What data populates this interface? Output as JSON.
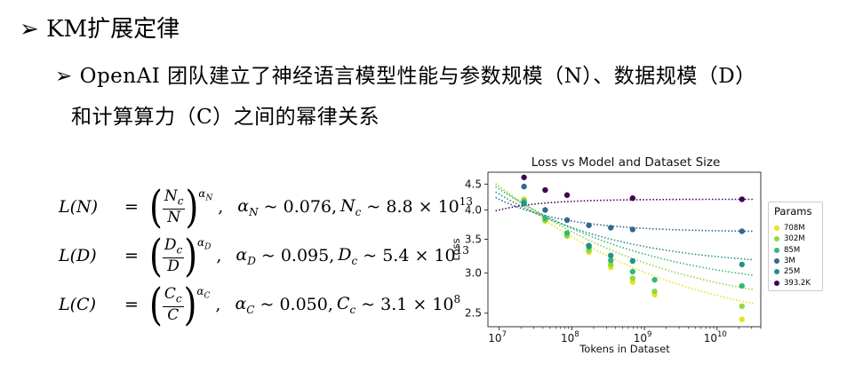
{
  "heading": {
    "arrow": "➢",
    "text": "KM扩展定律"
  },
  "bullet": {
    "arrow": "➢",
    "line1": "OpenAI 团队建立了神经语言模型性能与参数规模（N）、数据规模（D）",
    "line2": "和计算算力（C）之间的幂律关系"
  },
  "equations": [
    {
      "lhs": "L(N)",
      "eq": "=",
      "num": "N",
      "num_sub": "c",
      "den": "N",
      "exp": "α",
      "exp_sub": "N",
      "alpha": "α",
      "alpha_sub": "N",
      "alpha_val": "~ 0.076,",
      "const": "N",
      "const_sub": "c",
      "const_val": "~ 8.8 × 10",
      "power": "13"
    },
    {
      "lhs": "L(D)",
      "eq": "=",
      "num": "D",
      "num_sub": "c",
      "den": "D",
      "exp": "α",
      "exp_sub": "D",
      "alpha": "α",
      "alpha_sub": "D",
      "alpha_val": "~ 0.095,",
      "const": "D",
      "const_sub": "c",
      "const_val": "~ 5.4 × 10",
      "power": "13"
    },
    {
      "lhs": "L(C)",
      "eq": "=",
      "num": "C",
      "num_sub": "c",
      "den": "C",
      "exp": "α",
      "exp_sub": "C",
      "alpha": "α",
      "alpha_sub": "C",
      "alpha_val": "~ 0.050,",
      "const": "C",
      "const_sub": "c",
      "const_val": "~ 3.1 × 10",
      "power": "8"
    }
  ],
  "chart_data": {
    "type": "scatter",
    "title": "Loss vs Model and Dataset Size",
    "xlabel": "Tokens in Dataset",
    "ylabel": "Loss",
    "xscale": "log",
    "yscale": "log",
    "xlim": [
      7000000,
      40000000000
    ],
    "ylim": [
      2.35,
      4.75
    ],
    "x_ticks": [
      {
        "value": 10000000,
        "base": "10",
        "exp": "7"
      },
      {
        "value": 100000000,
        "base": "10",
        "exp": "8"
      },
      {
        "value": 1000000000,
        "base": "10",
        "exp": "9"
      },
      {
        "value": 10000000000,
        "base": "10",
        "exp": "10"
      }
    ],
    "y_ticks": [
      {
        "value": 2.5,
        "label": "2.5"
      },
      {
        "value": 3.0,
        "label": "3.0"
      },
      {
        "value": 3.5,
        "label": "3.5"
      },
      {
        "value": 4.0,
        "label": "4.0"
      },
      {
        "value": 4.5,
        "label": "4.5"
      }
    ],
    "legend": {
      "title": "Params",
      "placement": "right"
    },
    "series": [
      {
        "name": "708M",
        "color": "#e7e419",
        "x": [
          22000000,
          43000000,
          86000000,
          172000000,
          344000000,
          688000000,
          1380000000,
          22000000000
        ],
        "y": [
          4.2,
          3.8,
          3.55,
          3.3,
          3.08,
          2.88,
          2.72,
          2.43
        ],
        "fit": [
          4.45,
          0.24,
          2.3
        ]
      },
      {
        "name": "302M",
        "color": "#90d743",
        "x": [
          22000000,
          43000000,
          86000000,
          172000000,
          344000000,
          688000000,
          1380000000,
          22000000000
        ],
        "y": [
          4.18,
          3.82,
          3.56,
          3.33,
          3.12,
          2.93,
          2.76,
          2.58
        ],
        "fit": [
          4.45,
          0.24,
          2.5
        ]
      },
      {
        "name": "85M",
        "color": "#35b779",
        "x": [
          22000000,
          43000000,
          86000000,
          172000000,
          344000000,
          688000000,
          1380000000,
          22000000000
        ],
        "y": [
          4.15,
          3.85,
          3.6,
          3.38,
          3.18,
          3.02,
          2.91,
          2.83
        ],
        "fit": [
          4.4,
          0.25,
          2.75
        ]
      },
      {
        "name": "3M",
        "color": "#31688e",
        "x": [
          22000000,
          43000000,
          86000000,
          172000000,
          344000000,
          688000000,
          22000000000
        ],
        "y": [
          4.45,
          4.0,
          3.82,
          3.73,
          3.69,
          3.66,
          3.63
        ],
        "fit": [
          4.2,
          0.5,
          3.62
        ]
      },
      {
        "name": "25M",
        "color": "#21918c",
        "x": [
          22000000,
          172000000,
          344000000,
          688000000,
          22000000000
        ],
        "y": [
          4.12,
          3.4,
          3.25,
          3.17,
          3.12
        ],
        "fit": [
          4.3,
          0.3,
          3.08
        ]
      },
      {
        "name": "393.2K",
        "color": "#440154",
        "x": [
          22000000,
          43000000,
          86000000,
          688000000,
          22000000000
        ],
        "y": [
          4.64,
          4.38,
          4.28,
          4.22,
          4.2
        ],
        "fit": [
          4.0,
          0.7,
          4.2
        ]
      }
    ]
  }
}
